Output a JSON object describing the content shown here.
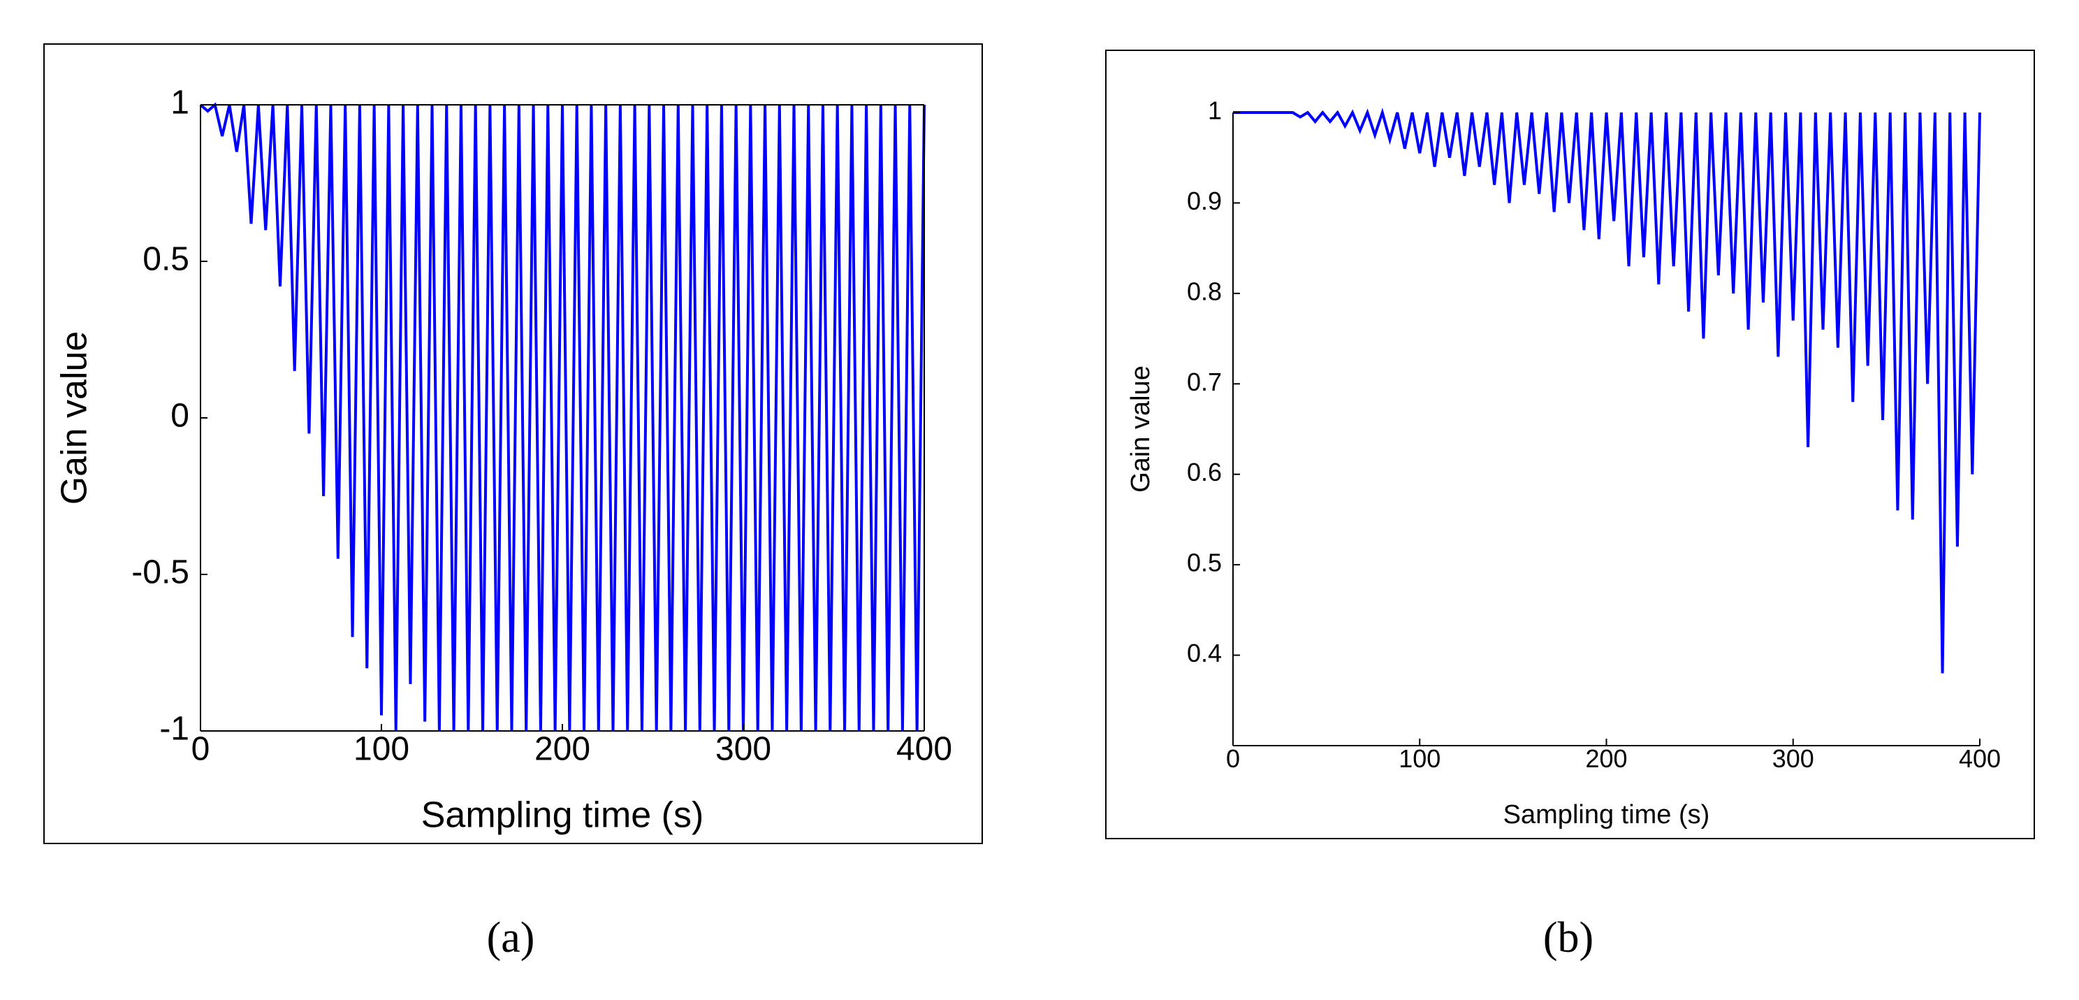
{
  "chart_data": [
    {
      "type": "line",
      "xlabel": "Sampling time (s)",
      "ylabel": "Gain value",
      "caption": "(a)",
      "xlim": [
        0,
        400
      ],
      "ylim": [
        -1,
        1
      ],
      "xticks": [
        0,
        100,
        200,
        300,
        400
      ],
      "yticks": [
        -1,
        -0.5,
        0,
        0.5,
        1
      ],
      "color": "#0000ff",
      "box": true,
      "x": [
        0,
        4,
        8,
        12,
        16,
        20,
        24,
        28,
        32,
        36,
        40,
        44,
        48,
        52,
        56,
        60,
        64,
        68,
        72,
        76,
        80,
        84,
        88,
        92,
        96,
        100,
        104,
        108,
        112,
        116,
        120,
        124,
        128,
        132,
        136,
        140,
        144,
        148,
        152,
        156,
        160,
        164,
        168,
        172,
        176,
        180,
        184,
        188,
        192,
        196,
        200,
        204,
        208,
        212,
        216,
        220,
        224,
        228,
        232,
        236,
        240,
        244,
        248,
        252,
        256,
        260,
        264,
        268,
        272,
        276,
        280,
        284,
        288,
        292,
        296,
        300,
        304,
        308,
        312,
        316,
        320,
        324,
        328,
        332,
        336,
        340,
        344,
        348,
        352,
        356,
        360,
        364,
        368,
        372,
        376,
        380,
        384,
        388,
        392,
        396,
        400
      ],
      "values": [
        1,
        0.98,
        1,
        0.9,
        1,
        0.85,
        1,
        0.62,
        1,
        0.6,
        1,
        0.42,
        1,
        0.15,
        1,
        -0.05,
        1,
        -0.25,
        1,
        -0.45,
        1,
        -0.7,
        1,
        -0.8,
        1,
        -0.95,
        1,
        -1,
        1,
        -0.85,
        1,
        -0.97,
        1,
        -1,
        1,
        -1,
        1,
        -1,
        1,
        -1,
        1,
        -1,
        1,
        -1,
        1,
        -1,
        1,
        -1,
        1,
        -1,
        1,
        -1,
        1,
        -1,
        1,
        -1,
        1,
        -1,
        1,
        -1,
        1,
        -1,
        1,
        -1,
        1,
        -1,
        1,
        -1,
        1,
        -1,
        1,
        -1,
        1,
        -1,
        1,
        -1,
        1,
        -1,
        1,
        -1,
        1,
        -1,
        1,
        -1,
        1,
        -1,
        1,
        -1,
        1,
        -1,
        1,
        -1,
        1,
        -1,
        1,
        -1,
        1,
        -1,
        1,
        -1,
        1
      ]
    },
    {
      "type": "line",
      "xlabel": "Sampling time (s)",
      "ylabel": "Gain value",
      "caption": "(b)",
      "xlim": [
        0,
        400
      ],
      "ylim": [
        0.3,
        1
      ],
      "xticks": [
        0,
        100,
        200,
        300,
        400
      ],
      "yticks": [
        0.4,
        0.5,
        0.6,
        0.7,
        0.8,
        0.9,
        1
      ],
      "color": "#0000ff",
      "box": false,
      "x": [
        0,
        4,
        8,
        12,
        16,
        20,
        24,
        28,
        32,
        36,
        40,
        44,
        48,
        52,
        56,
        60,
        64,
        68,
        72,
        76,
        80,
        84,
        88,
        92,
        96,
        100,
        104,
        108,
        112,
        116,
        120,
        124,
        128,
        132,
        136,
        140,
        144,
        148,
        152,
        156,
        160,
        164,
        168,
        172,
        176,
        180,
        184,
        188,
        192,
        196,
        200,
        204,
        208,
        212,
        216,
        220,
        224,
        228,
        232,
        236,
        240,
        244,
        248,
        252,
        256,
        260,
        264,
        268,
        272,
        276,
        280,
        284,
        288,
        292,
        296,
        300,
        304,
        308,
        312,
        316,
        320,
        324,
        328,
        332,
        336,
        340,
        344,
        348,
        352,
        356,
        360,
        364,
        368,
        372,
        376,
        380,
        384,
        388,
        392,
        396,
        400
      ],
      "values": [
        1,
        1,
        1,
        1,
        1,
        1,
        1,
        1,
        1,
        0.995,
        1,
        0.99,
        1,
        0.99,
        1,
        0.985,
        1,
        0.98,
        1,
        0.975,
        1,
        0.97,
        1,
        0.96,
        1,
        0.955,
        1,
        0.94,
        1,
        0.95,
        1,
        0.93,
        1,
        0.94,
        1,
        0.92,
        1,
        0.9,
        1,
        0.92,
        1,
        0.91,
        1,
        0.89,
        1,
        0.9,
        1,
        0.87,
        1,
        0.86,
        1,
        0.88,
        1,
        0.83,
        1,
        0.84,
        1,
        0.81,
        1,
        0.83,
        1,
        0.78,
        1,
        0.75,
        1,
        0.82,
        1,
        0.8,
        1,
        0.76,
        1,
        0.79,
        1,
        0.73,
        1,
        0.77,
        1,
        0.63,
        1,
        0.76,
        1,
        0.74,
        1,
        0.68,
        1,
        0.72,
        1,
        0.66,
        1,
        0.56,
        1,
        0.55,
        1,
        0.7,
        1,
        0.38,
        1,
        0.52,
        1,
        0.6,
        1
      ]
    }
  ]
}
